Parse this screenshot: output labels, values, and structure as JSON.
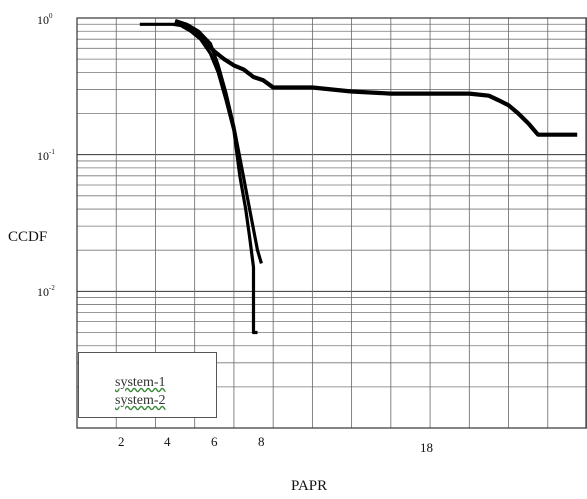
{
  "chart_data": {
    "type": "line",
    "title": "",
    "xlabel": "PAPR",
    "ylabel": "CCDF",
    "yscale": "log",
    "grid": true,
    "legend_position": "bottom-left",
    "x_tick_labels": [
      "2",
      "4",
      "6",
      "8",
      "18"
    ],
    "y_tick_labels": [
      {
        "base": "10",
        "exp": "0"
      },
      {
        "base": "10",
        "exp": "-1"
      },
      {
        "base": "10",
        "exp": "-2"
      }
    ],
    "series": [
      {
        "name": "system-1",
        "color": "#000000",
        "x": [
          3.2,
          4.2,
          4.9,
          5.3,
          5.8,
          6.3,
          6.8,
          7.2,
          7.6,
          8.0,
          8.3,
          8.6,
          8.8,
          9.0,
          9.0,
          9.2
        ],
        "y": [
          0.9,
          0.9,
          0.9,
          0.88,
          0.8,
          0.7,
          0.55,
          0.4,
          0.25,
          0.15,
          0.07,
          0.04,
          0.025,
          0.015,
          0.005,
          0.005
        ]
      },
      {
        "name": "system-2",
        "color": "#000000",
        "x": [
          5.0,
          5.6,
          6.2,
          6.8,
          7.2,
          7.6,
          8.0,
          8.4,
          8.8,
          9.2,
          9.4
        ],
        "y": [
          0.95,
          0.9,
          0.8,
          0.65,
          0.45,
          0.28,
          0.16,
          0.08,
          0.04,
          0.02,
          0.016
        ]
      },
      {
        "name": "",
        "color": "#000000",
        "x": [
          5.0,
          5.5,
          6.0,
          6.5,
          7.0,
          7.5,
          8.0,
          8.5,
          9.0,
          9.5,
          10.0,
          12.0,
          14.0,
          16.0,
          18.0,
          20.0,
          21.0,
          21.5,
          22.0,
          22.5,
          23.0,
          23.5,
          24.5,
          25.5
        ],
        "y": [
          0.95,
          0.9,
          0.8,
          0.68,
          0.57,
          0.5,
          0.45,
          0.42,
          0.37,
          0.35,
          0.31,
          0.31,
          0.29,
          0.28,
          0.28,
          0.28,
          0.27,
          0.25,
          0.23,
          0.2,
          0.17,
          0.14,
          0.14,
          0.14
        ]
      }
    ],
    "xlim": [
      0,
      26
    ],
    "ylim": [
      0.001,
      1
    ]
  },
  "legend": {
    "items": [
      "system-1",
      "system-2"
    ]
  }
}
